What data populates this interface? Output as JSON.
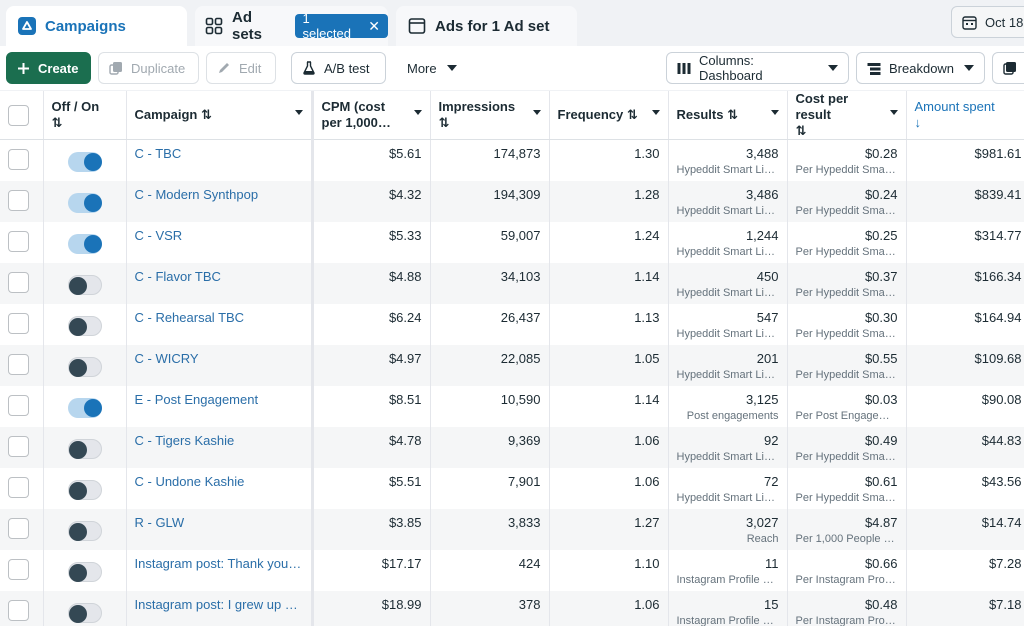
{
  "tabs": {
    "campaigns": "Campaigns",
    "adsets": "Ad sets",
    "adsets_badge": "1 selected",
    "ads": "Ads for 1 Ad set",
    "date": "Oct 18,"
  },
  "toolbar": {
    "create": "Create",
    "duplicate": "Duplicate",
    "edit": "Edit",
    "ab_test": "A/B test",
    "more": "More",
    "columns": "Columns: Dashboard",
    "breakdown": "Breakdown"
  },
  "table": {
    "headers": {
      "toggle": "Off / On",
      "campaign": "Campaign",
      "cpm": "CPM (cost per 1,000…",
      "impressions": "Impressions",
      "frequency": "Frequency",
      "results": "Results",
      "cost_per_result": "Cost per result",
      "amount_spent": "Amount spent"
    },
    "sort_icon": "⇅",
    "sort_down": "↓",
    "rows": [
      {
        "on": true,
        "name": "C - TBC",
        "cpm": "$5.61",
        "impressions": "174,873",
        "frequency": "1.30",
        "results": "3,488",
        "results_sub": "Hyped­dit Smart Lin…",
        "cpr": "$0.28",
        "cpr_sub": "Per Hypeddit Smar…",
        "amount": "$981.61"
      },
      {
        "on": true,
        "name": "C - Modern Synthpop",
        "cpm": "$4.32",
        "impressions": "194,309",
        "frequency": "1.28",
        "results": "3,486",
        "results_sub": "Hypeddit Smart Lin…",
        "cpr": "$0.24",
        "cpr_sub": "Per Hypeddit Smar…",
        "amount": "$839.41"
      },
      {
        "on": true,
        "name": "C - VSR",
        "cpm": "$5.33",
        "impressions": "59,007",
        "frequency": "1.24",
        "results": "1,244",
        "results_sub": "Hypeddit Smart Lin…",
        "cpr": "$0.25",
        "cpr_sub": "Per Hypeddit Smar…",
        "amount": "$314.77"
      },
      {
        "on": false,
        "name": "C - Flavor TBC",
        "cpm": "$4.88",
        "impressions": "34,103",
        "frequency": "1.14",
        "results": "450",
        "results_sub": "Hypeddit Smart Lin…",
        "cpr": "$0.37",
        "cpr_sub": "Per Hypeddit Smar…",
        "amount": "$166.34"
      },
      {
        "on": false,
        "name": "C - Rehearsal TBC",
        "cpm": "$6.24",
        "impressions": "26,437",
        "frequency": "1.13",
        "results": "547",
        "results_sub": "Hypeddit Smart Lin…",
        "cpr": "$0.30",
        "cpr_sub": "Per Hypeddit Smar…",
        "amount": "$164.94"
      },
      {
        "on": false,
        "name": "C - WICRY",
        "cpm": "$4.97",
        "impressions": "22,085",
        "frequency": "1.05",
        "results": "201",
        "results_sub": "Hypeddit Smart Lin…",
        "cpr": "$0.55",
        "cpr_sub": "Per Hypeddit Smar…",
        "amount": "$109.68"
      },
      {
        "on": true,
        "name": "E - Post Engagement",
        "cpm": "$8.51",
        "impressions": "10,590",
        "frequency": "1.14",
        "results": "3,125",
        "results_sub": "Post engagements",
        "cpr": "$0.03",
        "cpr_sub": "Per Post Engageme…",
        "amount": "$90.08"
      },
      {
        "on": false,
        "name": "C - Tigers Kashie",
        "cpm": "$4.78",
        "impressions": "9,369",
        "frequency": "1.06",
        "results": "92",
        "results_sub": "Hypeddit Smart Lin…",
        "cpr": "$0.49",
        "cpr_sub": "Per Hypeddit Smar…",
        "amount": "$44.83"
      },
      {
        "on": false,
        "name": "C - Undone Kashie",
        "cpm": "$5.51",
        "impressions": "7,901",
        "frequency": "1.06",
        "results": "72",
        "results_sub": "Hypeddit Smart Lin…",
        "cpr": "$0.61",
        "cpr_sub": "Per Hypeddit Smar…",
        "amount": "$43.56"
      },
      {
        "on": false,
        "name": "R - GLW",
        "cpm": "$3.85",
        "impressions": "3,833",
        "frequency": "1.27",
        "results": "3,027",
        "results_sub": "Reach",
        "cpr": "$4.87",
        "cpr_sub": "Per 1,000 People R…",
        "amount": "$14.74"
      },
      {
        "on": false,
        "name": "Instagram post: Thank you f…",
        "cpm": "$17.17",
        "impressions": "424",
        "frequency": "1.10",
        "results": "11",
        "results_sub": "Instagram Profile Vi…",
        "cpr": "$0.66",
        "cpr_sub": "Per Instagram Profi…",
        "amount": "$7.28"
      },
      {
        "on": false,
        "name": "Instagram post: I grew up w…",
        "cpm": "$18.99",
        "impressions": "378",
        "frequency": "1.06",
        "results": "15",
        "results_sub": "Instagram Profile Vi…",
        "cpr": "$0.48",
        "cpr_sub": "Per Instagram Profi…",
        "amount": "$7.18"
      }
    ]
  },
  "colors": {
    "accent": "#1a73b8",
    "create_green": "#1b6e4f",
    "link": "#2a6ea8"
  },
  "icons": {
    "campaigns_tab": "campaign-icon",
    "adsets_tab": "grid-icon",
    "ads_tab": "ad-icon",
    "date": "calendar-icon",
    "create": "plus-icon",
    "duplicate": "copy-icon",
    "edit": "pencil-icon",
    "ab_test": "flask-icon",
    "columns": "columns-icon",
    "breakdown": "breakdown-icon",
    "reports": "reports-icon"
  }
}
